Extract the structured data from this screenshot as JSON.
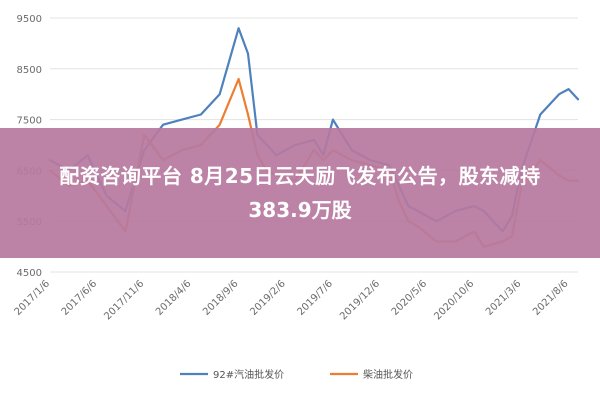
{
  "overlay": {
    "line1": "配资咨询平台 8月25日云天励飞发布公告，股东减持",
    "line2": "383.9万股",
    "bg_color": "#b77aa0"
  },
  "chart_data": {
    "type": "line",
    "title": "",
    "xlabel": "",
    "ylabel": "",
    "ylim": [
      4500,
      9500
    ],
    "y_ticks": [
      4500,
      5500,
      6500,
      7500,
      8500,
      9500
    ],
    "grid": true,
    "legend_position": "bottom",
    "x_tick_labels": [
      "2017/1/6",
      "2017/6/6",
      "2017/11/6",
      "2018/4/6",
      "2018/9/6",
      "2019/2/6",
      "2019/7/6",
      "2019/12/6",
      "2020/5/6",
      "2020/10/6",
      "2021/3/6",
      "2021/8/6"
    ],
    "x": [
      "2017/1/6",
      "2017/3/6",
      "2017/5/6",
      "2017/7/6",
      "2017/9/6",
      "2017/11/6",
      "2018/1/6",
      "2018/3/6",
      "2018/5/6",
      "2018/7/6",
      "2018/9/6",
      "2018/10/6",
      "2018/11/6",
      "2018/12/6",
      "2019/1/6",
      "2019/3/6",
      "2019/5/6",
      "2019/6/6",
      "2019/7/6",
      "2019/9/6",
      "2019/11/6",
      "2020/1/6",
      "2020/2/6",
      "2020/3/6",
      "2020/4/6",
      "2020/6/6",
      "2020/8/6",
      "2020/10/6",
      "2020/11/6",
      "2021/1/6",
      "2021/2/6",
      "2021/3/6",
      "2021/5/6",
      "2021/7/6",
      "2021/8/6",
      "2021/9/6"
    ],
    "series": [
      {
        "name": "92#汽油批发价",
        "color": "#4f81bd",
        "values": [
          6700,
          6500,
          6800,
          6000,
          5700,
          6900,
          7400,
          7500,
          7600,
          8000,
          9300,
          8800,
          7200,
          7000,
          6800,
          7000,
          7100,
          6800,
          7500,
          6900,
          6700,
          6600,
          6200,
          5800,
          5700,
          5500,
          5700,
          5800,
          5700,
          5300,
          5600,
          6500,
          7600,
          8000,
          8100,
          7900
        ]
      },
      {
        "name": "柴油批发价",
        "color": "#ed7d31",
        "values": [
          6500,
          6200,
          6300,
          5800,
          5300,
          7200,
          6700,
          6900,
          7000,
          7400,
          8300,
          7600,
          6800,
          6500,
          6400,
          6300,
          6900,
          6700,
          6900,
          6700,
          6600,
          6500,
          5900,
          5500,
          5400,
          5100,
          5100,
          5300,
          5000,
          5100,
          5200,
          6200,
          6700,
          6400,
          6300,
          6300
        ]
      }
    ]
  }
}
